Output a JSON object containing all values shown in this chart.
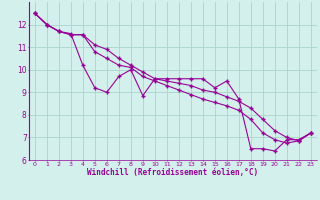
{
  "xlabel": "Windchill (Refroidissement éolien,°C)",
  "hours": [
    0,
    1,
    2,
    3,
    4,
    5,
    6,
    7,
    8,
    9,
    10,
    11,
    12,
    13,
    14,
    15,
    16,
    17,
    18,
    19,
    20,
    21,
    22,
    23
  ],
  "line1": [
    12.5,
    12.0,
    11.7,
    11.6,
    10.2,
    9.2,
    9.0,
    9.7,
    10.0,
    8.85,
    9.6,
    9.6,
    9.6,
    9.6,
    9.6,
    9.2,
    9.5,
    8.7,
    6.5,
    6.5,
    6.4,
    6.9,
    6.9,
    7.2
  ],
  "line2": [
    12.5,
    12.0,
    11.7,
    11.55,
    11.55,
    10.8,
    10.5,
    10.2,
    10.1,
    9.7,
    9.5,
    9.3,
    9.1,
    8.9,
    8.7,
    8.55,
    8.4,
    8.2,
    7.8,
    7.2,
    6.9,
    6.75,
    6.85,
    7.2
  ],
  "line3": [
    12.5,
    12.0,
    11.7,
    11.55,
    11.55,
    11.1,
    10.9,
    10.5,
    10.2,
    9.9,
    9.6,
    9.5,
    9.4,
    9.3,
    9.1,
    9.0,
    8.8,
    8.6,
    8.3,
    7.8,
    7.3,
    7.0,
    6.85,
    7.2
  ],
  "line_color": "#990099",
  "bg_color": "#d4f0ec",
  "grid_color": "#aad4cc",
  "ylim": [
    6,
    13
  ],
  "yticks": [
    6,
    7,
    8,
    9,
    10,
    11,
    12
  ],
  "xlim": [
    -0.5,
    23.5
  ]
}
